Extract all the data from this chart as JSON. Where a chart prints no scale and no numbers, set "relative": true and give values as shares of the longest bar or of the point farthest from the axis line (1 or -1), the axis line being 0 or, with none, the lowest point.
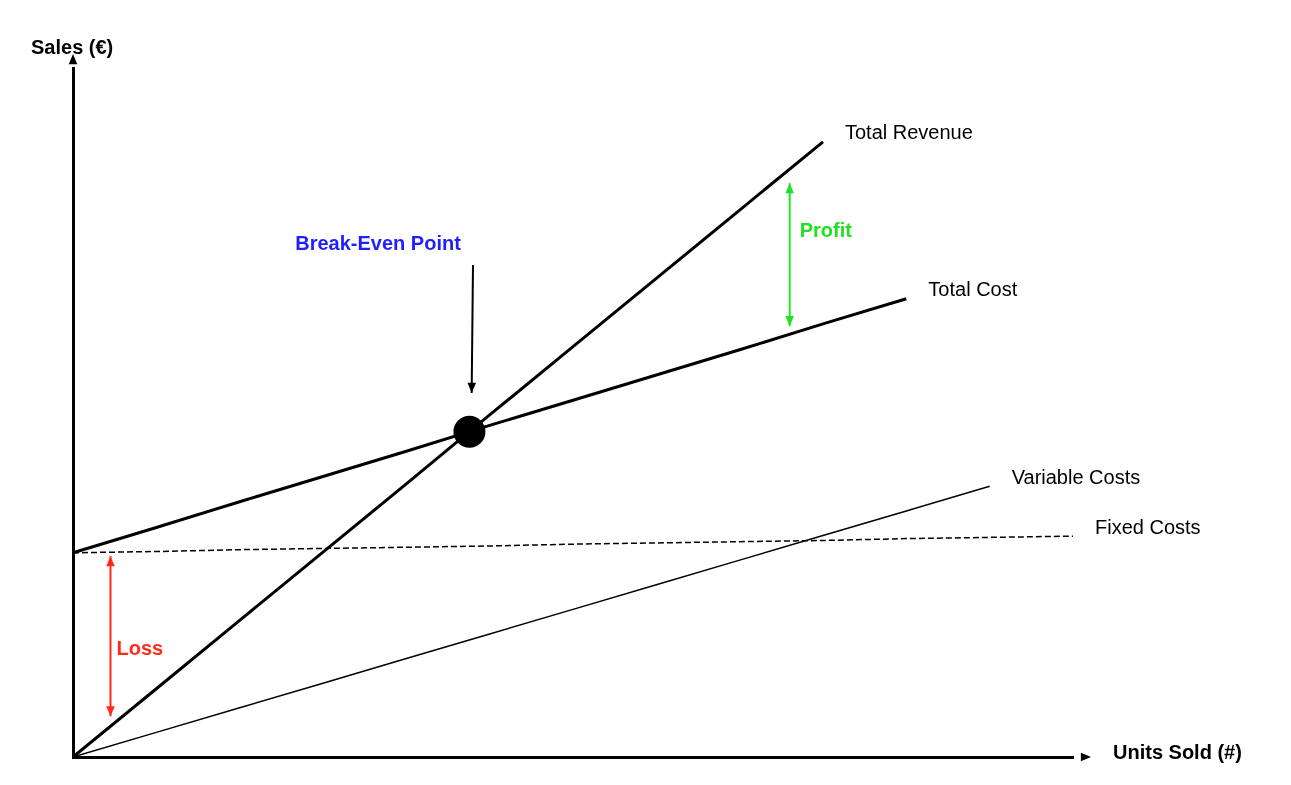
{
  "chart_data": {
    "type": "line",
    "relative": true,
    "xlabel": "Units Sold (#)",
    "ylabel": "Sales (€)",
    "categories": [
      null,
      null,
      null,
      null,
      null,
      null,
      null,
      null,
      null,
      null,
      null,
      null,
      null
    ],
    "series": [
      {
        "name": "Total Revenue",
        "color": "#000000",
        "values": [
          0,
          0.111,
          0.222,
          0.333,
          0.444,
          0.556,
          0.667,
          0.778,
          0.889,
          1.0,
          null,
          null,
          null
        ]
      },
      {
        "name": "Total Cost",
        "color": "#000000",
        "values": [
          0.332,
          0.373,
          0.415,
          0.456,
          0.497,
          0.539,
          0.58,
          0.621,
          0.662,
          0.704,
          0.745,
          null,
          null
        ]
      },
      {
        "name": "Variable Costs",
        "color": "#000000",
        "values": [
          0,
          0.04,
          0.08,
          0.12,
          0.16,
          0.2,
          0.24,
          0.28,
          0.32,
          0.36,
          0.4,
          0.44,
          null
        ]
      },
      {
        "name": "Fixed Costs",
        "color": "#000000",
        "line_style": "dashed",
        "values": [
          0.332,
          0.334,
          0.337,
          0.339,
          0.341,
          0.343,
          0.346,
          0.348,
          0.35,
          0.352,
          0.355,
          0.357,
          0.359
        ]
      }
    ],
    "annotations": [
      "Break-Even Point",
      "Profit",
      "Loss"
    ],
    "line_style": "solid",
    "grid": false,
    "legend": false
  }
}
